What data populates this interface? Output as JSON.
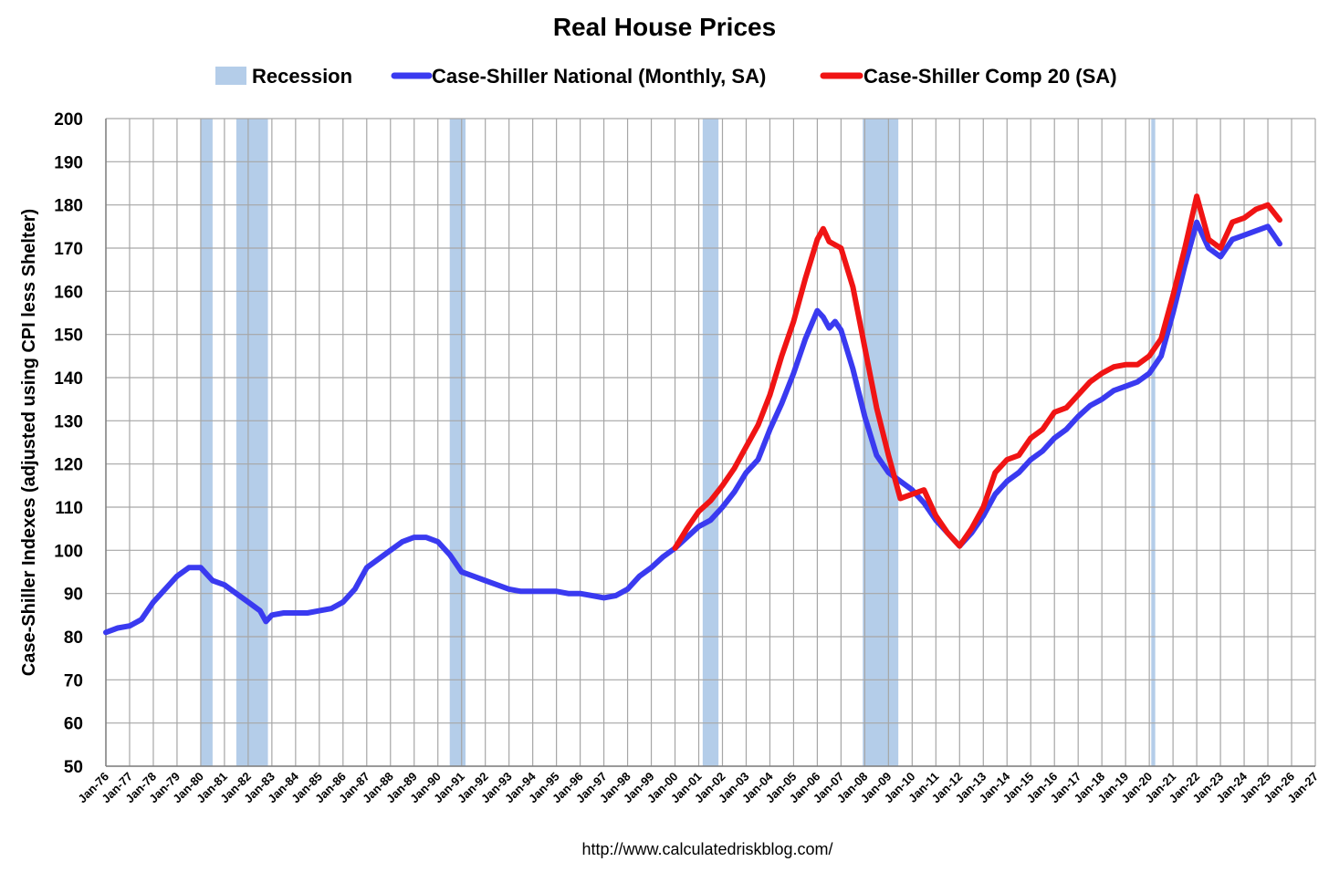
{
  "chart_data": {
    "type": "line",
    "title": "Real House Prices",
    "ylabel": "Case-Shiller Indexes (adjusted using CPI less Shelter)",
    "xlabel": "",
    "source": "http://www.calculatedriskblog.com/",
    "ylim": [
      50,
      200
    ],
    "yticks": [
      50,
      60,
      70,
      80,
      90,
      100,
      110,
      120,
      130,
      140,
      150,
      160,
      170,
      180,
      190,
      200
    ],
    "xlim": [
      1976,
      2027
    ],
    "xtick_labels": [
      "Jan-76",
      "Jan-77",
      "Jan-78",
      "Jan-79",
      "Jan-80",
      "Jan-81",
      "Jan-82",
      "Jan-83",
      "Jan-84",
      "Jan-85",
      "Jan-86",
      "Jan-87",
      "Jan-88",
      "Jan-89",
      "Jan-90",
      "Jan-91",
      "Jan-92",
      "Jan-93",
      "Jan-94",
      "Jan-95",
      "Jan-96",
      "Jan-97",
      "Jan-98",
      "Jan-99",
      "Jan-00",
      "Jan-01",
      "Jan-02",
      "Jan-03",
      "Jan-04",
      "Jan-05",
      "Jan-06",
      "Jan-07",
      "Jan-08",
      "Jan-09",
      "Jan-10",
      "Jan-11",
      "Jan-12",
      "Jan-13",
      "Jan-14",
      "Jan-15",
      "Jan-16",
      "Jan-17",
      "Jan-18",
      "Jan-19",
      "Jan-20",
      "Jan-21",
      "Jan-22",
      "Jan-23",
      "Jan-24",
      "Jan-25",
      "Jan-26",
      "Jan-27"
    ],
    "grid": true,
    "legend_position": "top",
    "legend": [
      {
        "label": "Recession",
        "kind": "band",
        "color": "#b4cde9"
      },
      {
        "label": "Case-Shiller National (Monthly, SA)",
        "kind": "line",
        "color": "#3a3af0"
      },
      {
        "label": "Case-Shiller Comp 20  (SA)",
        "kind": "line",
        "color": "#f01414"
      }
    ],
    "recessions": [
      {
        "start": "1980-01",
        "end": "1980-07"
      },
      {
        "start": "1981-07",
        "end": "1982-11"
      },
      {
        "start": "1990-07",
        "end": "1991-03"
      },
      {
        "start": "2001-03",
        "end": "2001-11"
      },
      {
        "start": "2007-12",
        "end": "2009-06"
      },
      {
        "start": "2020-02",
        "end": "2020-04"
      }
    ],
    "series": [
      {
        "name": "Case-Shiller National (Monthly, SA)",
        "color": "#3a3af0",
        "points": [
          [
            "1976-01",
            81
          ],
          [
            "1976-07",
            82
          ],
          [
            "1977-01",
            82.5
          ],
          [
            "1977-07",
            84
          ],
          [
            "1978-01",
            88
          ],
          [
            "1978-07",
            91
          ],
          [
            "1979-01",
            94
          ],
          [
            "1979-07",
            96
          ],
          [
            "1980-01",
            96
          ],
          [
            "1980-07",
            93
          ],
          [
            "1981-01",
            92
          ],
          [
            "1981-07",
            90
          ],
          [
            "1982-01",
            88
          ],
          [
            "1982-07",
            86
          ],
          [
            "1982-10",
            83.5
          ],
          [
            "1983-01",
            85
          ],
          [
            "1983-07",
            85.5
          ],
          [
            "1984-01",
            85.5
          ],
          [
            "1984-07",
            85.5
          ],
          [
            "1985-01",
            86
          ],
          [
            "1985-07",
            86.5
          ],
          [
            "1986-01",
            88
          ],
          [
            "1986-07",
            91
          ],
          [
            "1987-01",
            96
          ],
          [
            "1987-07",
            98
          ],
          [
            "1988-01",
            100
          ],
          [
            "1988-07",
            102
          ],
          [
            "1989-01",
            103
          ],
          [
            "1989-07",
            103
          ],
          [
            "1990-01",
            102
          ],
          [
            "1990-07",
            99
          ],
          [
            "1991-01",
            95
          ],
          [
            "1991-07",
            94
          ],
          [
            "1992-01",
            93
          ],
          [
            "1992-07",
            92
          ],
          [
            "1993-01",
            91
          ],
          [
            "1993-07",
            90.5
          ],
          [
            "1994-01",
            90.5
          ],
          [
            "1994-07",
            90.5
          ],
          [
            "1995-01",
            90.5
          ],
          [
            "1995-07",
            90
          ],
          [
            "1996-01",
            90
          ],
          [
            "1996-07",
            89.5
          ],
          [
            "1997-01",
            89
          ],
          [
            "1997-07",
            89.5
          ],
          [
            "1998-01",
            91
          ],
          [
            "1998-07",
            94
          ],
          [
            "1999-01",
            96
          ],
          [
            "1999-07",
            98.5
          ],
          [
            "2000-01",
            100.5
          ],
          [
            "2000-07",
            103
          ],
          [
            "2001-01",
            105.5
          ],
          [
            "2001-07",
            107
          ],
          [
            "2002-01",
            110
          ],
          [
            "2002-07",
            113.5
          ],
          [
            "2003-01",
            118
          ],
          [
            "2003-07",
            121
          ],
          [
            "2004-01",
            128
          ],
          [
            "2004-07",
            134
          ],
          [
            "2005-01",
            141
          ],
          [
            "2005-07",
            149
          ],
          [
            "2006-01",
            155.5
          ],
          [
            "2006-04",
            154
          ],
          [
            "2006-07",
            151.5
          ],
          [
            "2006-10",
            153
          ],
          [
            "2007-01",
            151
          ],
          [
            "2007-07",
            142
          ],
          [
            "2008-01",
            131
          ],
          [
            "2008-07",
            122
          ],
          [
            "2009-01",
            118
          ],
          [
            "2009-07",
            116
          ],
          [
            "2010-01",
            114
          ],
          [
            "2010-07",
            111
          ],
          [
            "2011-01",
            107
          ],
          [
            "2011-07",
            104
          ],
          [
            "2012-01",
            101
          ],
          [
            "2012-07",
            104
          ],
          [
            "2013-01",
            108
          ],
          [
            "2013-07",
            113
          ],
          [
            "2014-01",
            116
          ],
          [
            "2014-07",
            118
          ],
          [
            "2015-01",
            121
          ],
          [
            "2015-07",
            123
          ],
          [
            "2016-01",
            126
          ],
          [
            "2016-07",
            128
          ],
          [
            "2017-01",
            131
          ],
          [
            "2017-07",
            133.5
          ],
          [
            "2018-01",
            135
          ],
          [
            "2018-07",
            137
          ],
          [
            "2019-01",
            138
          ],
          [
            "2019-07",
            139
          ],
          [
            "2020-01",
            141
          ],
          [
            "2020-07",
            145
          ],
          [
            "2021-01",
            155
          ],
          [
            "2021-07",
            166
          ],
          [
            "2022-01",
            176
          ],
          [
            "2022-07",
            170
          ],
          [
            "2023-01",
            168
          ],
          [
            "2023-07",
            172
          ],
          [
            "2024-01",
            173
          ],
          [
            "2024-07",
            174
          ],
          [
            "2025-01",
            175
          ],
          [
            "2025-07",
            171
          ]
        ]
      },
      {
        "name": "Case-Shiller Comp 20  (SA)",
        "color": "#f01414",
        "points": [
          [
            "2000-01",
            100.5
          ],
          [
            "2000-07",
            105
          ],
          [
            "2001-01",
            109
          ],
          [
            "2001-07",
            111.5
          ],
          [
            "2002-01",
            115
          ],
          [
            "2002-07",
            119
          ],
          [
            "2003-01",
            124
          ],
          [
            "2003-07",
            129
          ],
          [
            "2004-01",
            136
          ],
          [
            "2004-07",
            145
          ],
          [
            "2005-01",
            153
          ],
          [
            "2005-07",
            163
          ],
          [
            "2006-01",
            172
          ],
          [
            "2006-04",
            174.5
          ],
          [
            "2006-07",
            171.5
          ],
          [
            "2007-01",
            170
          ],
          [
            "2007-07",
            161
          ],
          [
            "2008-01",
            147
          ],
          [
            "2008-07",
            133
          ],
          [
            "2009-01",
            122
          ],
          [
            "2009-07",
            112
          ],
          [
            "2010-01",
            113
          ],
          [
            "2010-07",
            114
          ],
          [
            "2011-01",
            108
          ],
          [
            "2011-07",
            104
          ],
          [
            "2012-01",
            101
          ],
          [
            "2012-07",
            105
          ],
          [
            "2013-01",
            110
          ],
          [
            "2013-07",
            118
          ],
          [
            "2014-01",
            121
          ],
          [
            "2014-07",
            122
          ],
          [
            "2015-01",
            126
          ],
          [
            "2015-07",
            128
          ],
          [
            "2016-01",
            132
          ],
          [
            "2016-07",
            133
          ],
          [
            "2017-01",
            136
          ],
          [
            "2017-07",
            139
          ],
          [
            "2018-01",
            141
          ],
          [
            "2018-07",
            142.5
          ],
          [
            "2019-01",
            143
          ],
          [
            "2019-07",
            143
          ],
          [
            "2020-01",
            145
          ],
          [
            "2020-07",
            149
          ],
          [
            "2021-01",
            159
          ],
          [
            "2021-07",
            170
          ],
          [
            "2022-01",
            182
          ],
          [
            "2022-07",
            172
          ],
          [
            "2023-01",
            170
          ],
          [
            "2023-07",
            176
          ],
          [
            "2024-01",
            177
          ],
          [
            "2024-07",
            179
          ],
          [
            "2025-01",
            180
          ],
          [
            "2025-07",
            176.5
          ]
        ]
      }
    ]
  }
}
